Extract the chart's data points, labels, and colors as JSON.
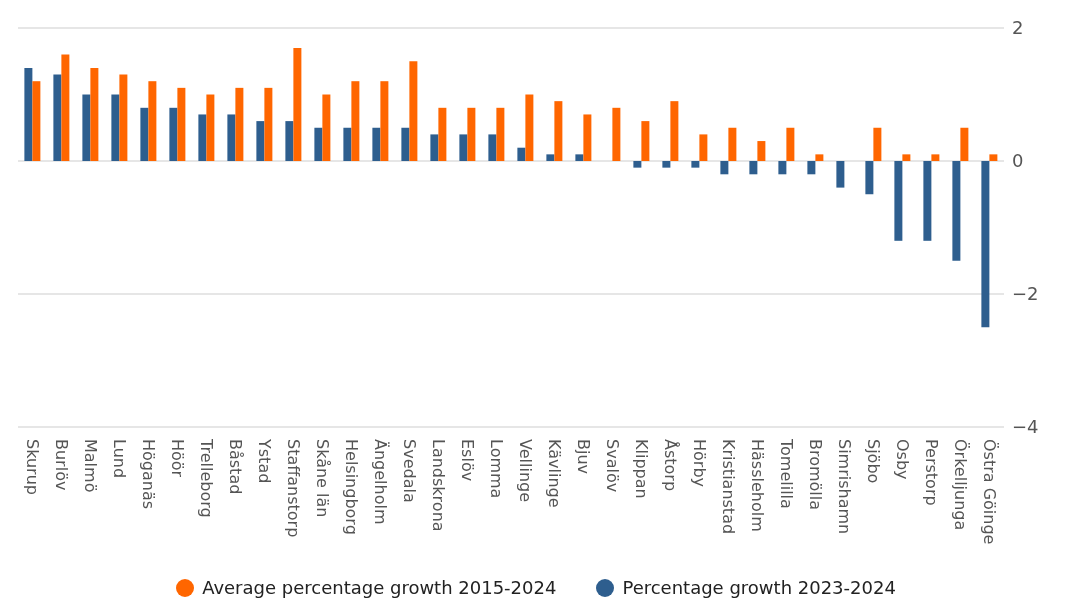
{
  "chart_data": {
    "type": "bar",
    "categories": [
      "Skurup",
      "Burlöv",
      "Malmö",
      "Lund",
      "Höganäs",
      "Höör",
      "Trelleborg",
      "Båstad",
      "Ystad",
      "Staffanstorp",
      "Skåne län",
      "Helsingborg",
      "Ängelholm",
      "Svedala",
      "Landskrona",
      "Eslöv",
      "Lomma",
      "Vellinge",
      "Kävlinge",
      "Bjuv",
      "Svalöv",
      "Klippan",
      "Åstorp",
      "Hörby",
      "Kristianstad",
      "Hässleholm",
      "Tomelilla",
      "Bromölla",
      "Simrishamn",
      "Sjöbo",
      "Osby",
      "Perstorp",
      "Örkelljunga",
      "Östra Göinge"
    ],
    "series": [
      {
        "name": "Percentage growth 2023-2024",
        "color": "#2e5e8e",
        "values": [
          1.4,
          1.3,
          1.0,
          1.0,
          0.8,
          0.8,
          0.7,
          0.7,
          0.6,
          0.6,
          0.5,
          0.5,
          0.5,
          0.5,
          0.4,
          0.4,
          0.4,
          0.2,
          0.1,
          0.1,
          0,
          -0.1,
          -0.1,
          -0.1,
          -0.2,
          -0.2,
          -0.2,
          -0.2,
          -0.4,
          -0.5,
          -1.2,
          -1.2,
          -1.5,
          -2.5
        ]
      },
      {
        "name": "Average percentage growth 2015-2024",
        "color": "#ff6600",
        "values": [
          1.2,
          1.6,
          1.4,
          1.3,
          1.2,
          1.1,
          1.0,
          1.1,
          1.1,
          1.7,
          1.0,
          1.2,
          1.2,
          1.5,
          0.8,
          0.8,
          0.8,
          1.0,
          0.9,
          0.7,
          0.8,
          0.6,
          0.9,
          0.4,
          0.5,
          0.3,
          0.5,
          0.1,
          0,
          0.5,
          0.1,
          0.1,
          0.5,
          0.1
        ]
      }
    ],
    "ylim": [
      -4,
      2
    ],
    "yticks": [
      -4,
      -2,
      0,
      2
    ],
    "grid": "y",
    "legend": "bottom"
  }
}
